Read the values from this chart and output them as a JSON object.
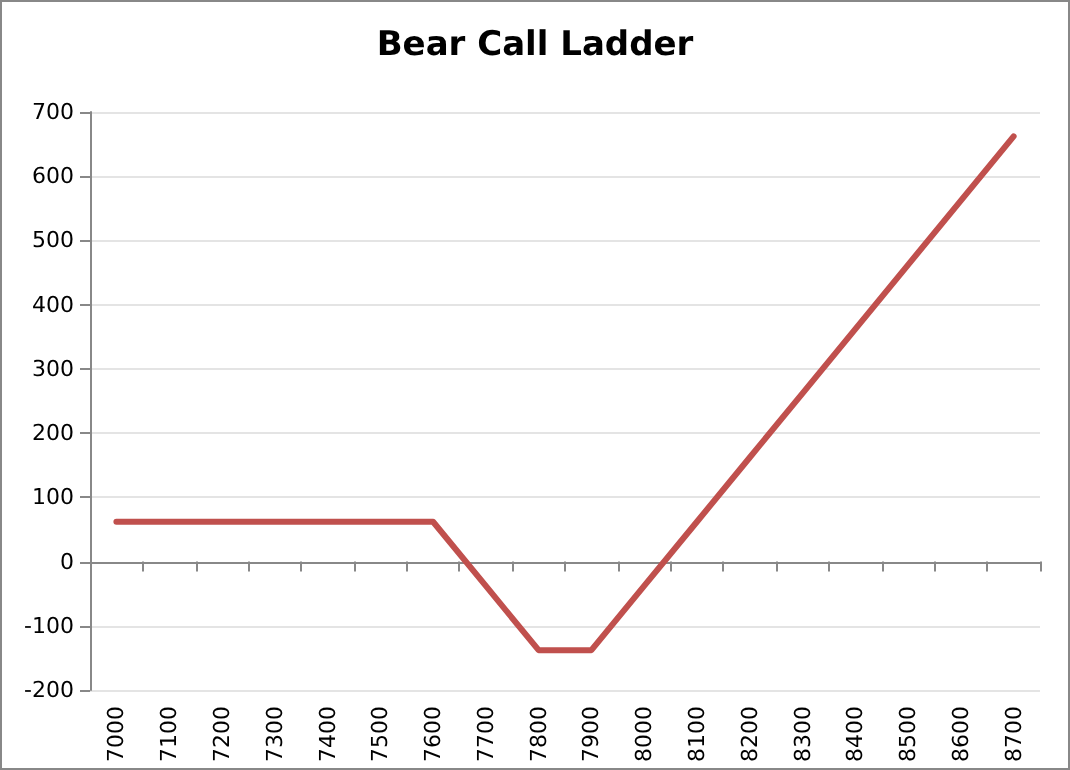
{
  "chart_data": {
    "type": "line",
    "title": "Bear Call Ladder",
    "categories": [
      "7000",
      "7100",
      "7200",
      "7300",
      "7400",
      "7500",
      "7600",
      "7700",
      "7800",
      "7900",
      "8000",
      "8100",
      "8200",
      "8300",
      "8400",
      "8500",
      "8600",
      "8700"
    ],
    "series": [
      {
        "color": "#c0504d",
        "values": [
          62,
          62,
          62,
          62,
          62,
          62,
          62,
          -38,
          -138,
          -138,
          -38,
          62,
          162,
          262,
          362,
          462,
          562,
          662
        ]
      }
    ],
    "ylim": [
      -200,
      700
    ],
    "yticks": [
      -200,
      -100,
      0,
      100,
      200,
      300,
      400,
      500,
      600,
      700
    ],
    "grid": "y",
    "marker": "none",
    "line_style": "solid"
  }
}
